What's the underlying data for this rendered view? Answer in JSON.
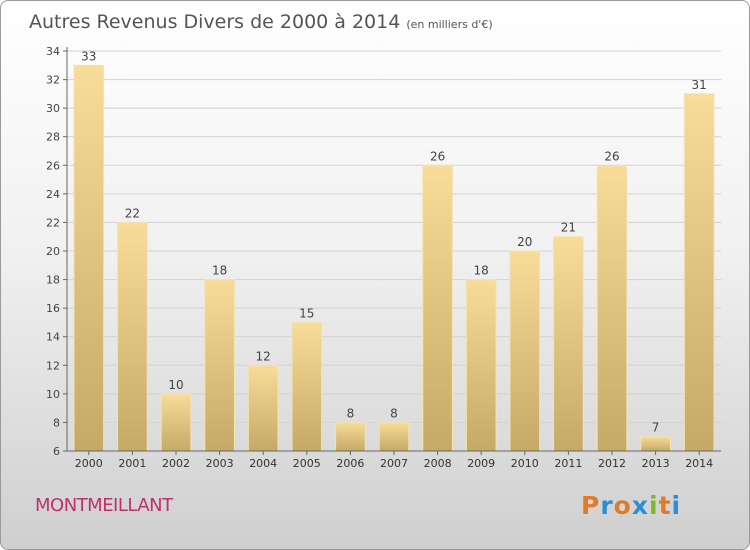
{
  "header": {
    "title": "Autres Revenus Divers de 2000 à 2014",
    "unit": "(en milliers d'€)"
  },
  "footer": {
    "place": "MONTMEILLANT",
    "logo": [
      "P",
      "r",
      "o",
      "x",
      "i",
      "t",
      "i"
    ],
    "logo_colors": [
      "#e07b28",
      "#2c8fd6",
      "#e07b28",
      "#2c8fd6",
      "#7cb82f",
      "#e07b28",
      "#2c8fd6"
    ]
  },
  "chart_data": {
    "type": "bar",
    "categories": [
      "2000",
      "2001",
      "2002",
      "2003",
      "2004",
      "2005",
      "2006",
      "2007",
      "2008",
      "2009",
      "2010",
      "2011",
      "2012",
      "2013",
      "2014"
    ],
    "values": [
      33,
      22,
      10,
      18,
      12,
      15,
      8,
      8,
      26,
      18,
      20,
      21,
      26,
      7,
      31
    ],
    "ylim": [
      6,
      34
    ],
    "yticks": [
      6,
      8,
      10,
      12,
      14,
      16,
      18,
      20,
      22,
      24,
      26,
      28,
      30,
      32,
      34
    ],
    "grid": true,
    "bar_color_top": "#f8dc99",
    "bar_color_bottom": "#c4aa66"
  }
}
